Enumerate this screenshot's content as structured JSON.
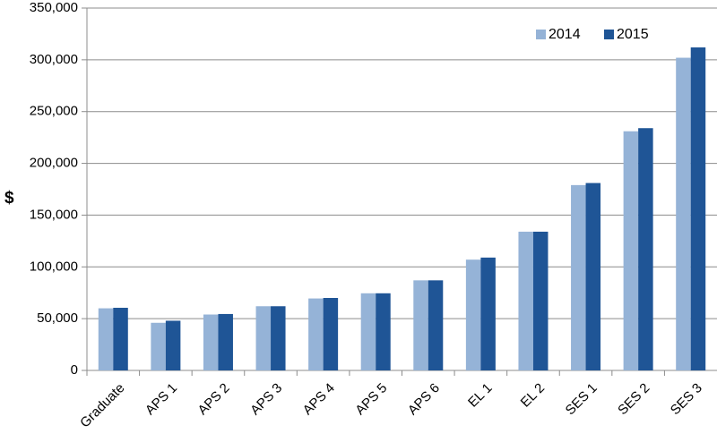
{
  "chart_data": {
    "type": "bar",
    "title": "",
    "xlabel": "",
    "ylabel": "$",
    "ylim": [
      0,
      350000
    ],
    "yticks": [
      0,
      50000,
      100000,
      150000,
      200000,
      250000,
      300000,
      350000
    ],
    "ytick_labels": [
      "0",
      "50,000",
      "100,000",
      "150,000",
      "200,000",
      "250,000",
      "300,000",
      "350,000"
    ],
    "grid": true,
    "legend_position": "top-right",
    "categories": [
      "Graduate",
      "APS 1",
      "APS 2",
      "APS 3",
      "APS 4",
      "APS 5",
      "APS 6",
      "EL 1",
      "EL 2",
      "SES 1",
      "SES 2",
      "SES 3"
    ],
    "series": [
      {
        "name": "2014",
        "color": "#95b3d7",
        "values": [
          60000,
          46000,
          54000,
          62000,
          69500,
          74500,
          87000,
          107000,
          134000,
          179000,
          231000,
          302000
        ]
      },
      {
        "name": "2015",
        "color": "#1f5596",
        "values": [
          60500,
          48000,
          54500,
          62000,
          70000,
          74500,
          87000,
          109000,
          134000,
          181000,
          234000,
          312000
        ]
      }
    ]
  }
}
